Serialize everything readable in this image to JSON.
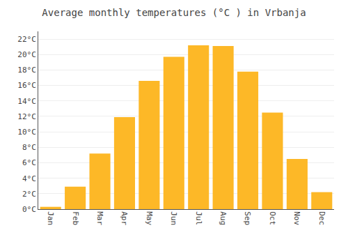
{
  "chart_data": {
    "type": "bar",
    "title": "Average monthly temperatures (°C ) in Vrbanja",
    "categories": [
      "Jan",
      "Feb",
      "Mar",
      "Apr",
      "May",
      "Jun",
      "Jul",
      "Aug",
      "Sep",
      "Oct",
      "Nov",
      "Dec"
    ],
    "values": [
      0.3,
      2.9,
      7.2,
      11.9,
      16.6,
      19.7,
      21.2,
      21.1,
      17.8,
      12.5,
      6.5,
      2.2
    ],
    "color": "#FDB827",
    "ylim": [
      0,
      23
    ],
    "yticks": [
      {
        "value": 0,
        "label": "0°C"
      },
      {
        "value": 2,
        "label": "2°C"
      },
      {
        "value": 4,
        "label": "4°C"
      },
      {
        "value": 6,
        "label": "6°C"
      },
      {
        "value": 8,
        "label": "8°C"
      },
      {
        "value": 10,
        "label": "10°C"
      },
      {
        "value": 12,
        "label": "12°C"
      },
      {
        "value": 14,
        "label": "14°C"
      },
      {
        "value": 16,
        "label": "16°C"
      },
      {
        "value": 18,
        "label": "18°C"
      },
      {
        "value": 20,
        "label": "20°C"
      },
      {
        "value": 22,
        "label": "22°C"
      }
    ],
    "grid": true
  }
}
